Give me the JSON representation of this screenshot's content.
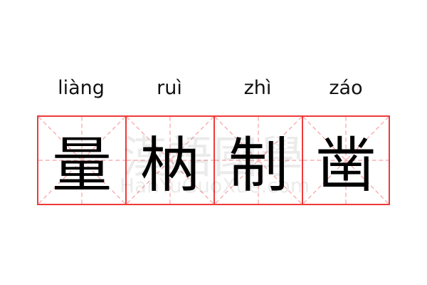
{
  "word": [
    {
      "pinyin": "liàng",
      "char": "量"
    },
    {
      "pinyin": "ruì",
      "char": "枘"
    },
    {
      "pinyin": "zhì",
      "char": "制"
    },
    {
      "pinyin": "záo",
      "char": "凿"
    }
  ],
  "watermark": {
    "hanzi": "漢語國學",
    "latin": "HanYuGuoXue.com"
  },
  "colors": {
    "grid_border": "#f03a3a",
    "guide_lines": "#f7a0a0",
    "text": "#000000"
  }
}
